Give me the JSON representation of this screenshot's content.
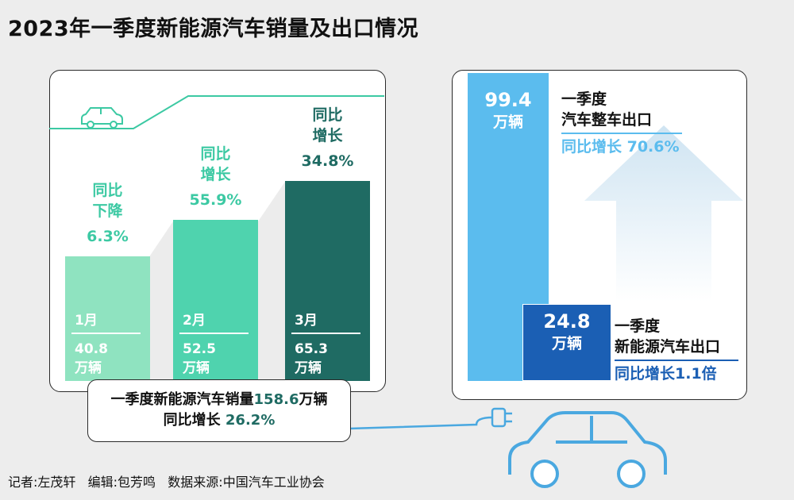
{
  "title": "2023年一季度新能源汽车销量及出口情况",
  "chart_data": {
    "type": "bar",
    "title": "2023年一季度新能源汽车销量及出口情况",
    "unit": "万辆",
    "categories": [
      "1月",
      "2月",
      "3月"
    ],
    "values": [
      40.8,
      52.5,
      65.3
    ],
    "value_labels": [
      "40.8",
      "52.5",
      "65.3"
    ],
    "growth": [
      {
        "line1": "同比",
        "line2": "下降",
        "rate": "6.3%"
      },
      {
        "line1": "同比",
        "line2": "增长",
        "rate": "55.9%"
      },
      {
        "line1": "同比",
        "line2": "增长",
        "rate": "34.8%"
      }
    ],
    "colors": [
      "#8fe3c0",
      "#4fd3ae",
      "#1f6b63"
    ],
    "total": {
      "prefix": "一季度新能源汽车销量",
      "value": "158.6",
      "unit": "万辆",
      "growth_prefix": "同比增长 ",
      "growth_value": "26.2%"
    },
    "exports": [
      {
        "value": 99.4,
        "value_label": "99.4",
        "unit": "万辆",
        "name_line1": "一季度",
        "name_line2": "汽车整车出口",
        "growth": "同比增长 70.6%",
        "color": "#5bbcee"
      },
      {
        "value": 24.8,
        "value_label": "24.8",
        "unit": "万辆",
        "name_line1": "一季度",
        "name_line2": "新能源汽车出口",
        "growth": "同比增长1.1倍",
        "color": "#1b5fb4"
      }
    ]
  },
  "footer": "记者:左茂轩   编辑:包芳鸣   数据来源:中国汽车工业协会"
}
